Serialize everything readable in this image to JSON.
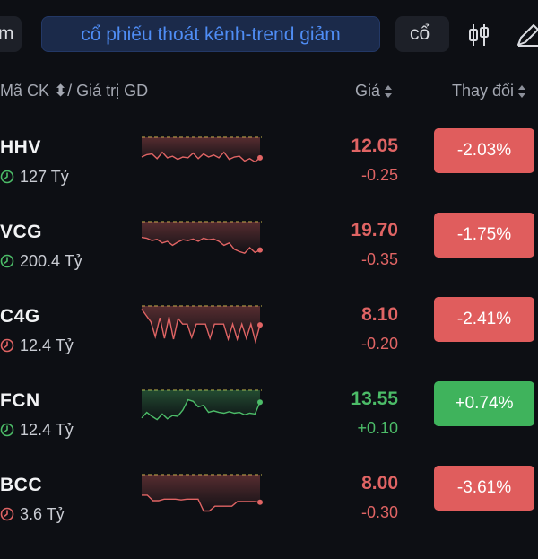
{
  "filters": {
    "left_label": "m",
    "active_label": "cổ phiếu thoát kênh-trend giảm",
    "right_label": "cổ"
  },
  "toolbar": {
    "candles_icon": "candlestick-icon",
    "pen_icon": "pen-icon"
  },
  "header": {
    "symbol_value": "Mã CK ⬍/ Giá trị GD",
    "price": "Giá",
    "change": "Thay đổi"
  },
  "colors": {
    "up": "#4cbc68",
    "down": "#e06464",
    "badge_down": "#e05d5d",
    "badge_up": "#3fb35c",
    "accent": "#4f8df5"
  },
  "rows": [
    {
      "ticker": "HHV",
      "value": "127 Tỷ",
      "price": "12.05",
      "delta": "-0.25",
      "change": "-2.03%",
      "dir": "down",
      "icon_color": "#4cbc68",
      "spark": [
        50,
        56,
        58,
        46,
        62,
        48,
        52,
        44,
        50,
        48,
        60,
        46,
        58,
        50,
        55,
        48,
        62,
        44,
        50,
        52,
        40,
        46,
        38,
        48
      ]
    },
    {
      "ticker": "VCG",
      "value": "200.4 Tỷ",
      "price": "19.70",
      "delta": "-0.35",
      "change": "-1.75%",
      "dir": "down",
      "icon_color": "#4cbc68",
      "spark": [
        60,
        58,
        52,
        55,
        46,
        50,
        40,
        48,
        54,
        52,
        56,
        50,
        58,
        54,
        56,
        50,
        40,
        46,
        30,
        24,
        20,
        34,
        22,
        28
      ]
    },
    {
      "ticker": "C4G",
      "value": "12.4 Tỷ",
      "price": "8.10",
      "delta": "-0.20",
      "change": "-2.41%",
      "dir": "down",
      "icon_color": "#e06464",
      "spark": [
        92,
        76,
        60,
        22,
        70,
        18,
        72,
        16,
        68,
        54,
        54,
        20,
        54,
        54,
        54,
        18,
        54,
        54,
        54,
        16,
        54,
        16,
        54,
        18,
        54,
        10,
        52
      ]
    },
    {
      "ticker": "FCN",
      "value": "12.4 Tỷ",
      "price": "13.55",
      "delta": "+0.10",
      "change": "+0.74%",
      "dir": "up",
      "icon_color": "#4cbc68",
      "spark": [
        30,
        44,
        34,
        26,
        40,
        28,
        36,
        34,
        50,
        76,
        72,
        58,
        62,
        44,
        48,
        44,
        42,
        46,
        42,
        44,
        38,
        42,
        40,
        70
      ]
    },
    {
      "ticker": "BCC",
      "value": "3.6 Tỷ",
      "price": "8.00",
      "delta": "-0.30",
      "change": "-3.61%",
      "dir": "down",
      "icon_color": "#e06464",
      "spark": [
        48,
        48,
        34,
        34,
        38,
        38,
        38,
        36,
        38,
        38,
        38,
        8,
        8,
        20,
        20,
        20,
        20,
        32,
        32,
        32,
        32,
        30
      ]
    }
  ]
}
